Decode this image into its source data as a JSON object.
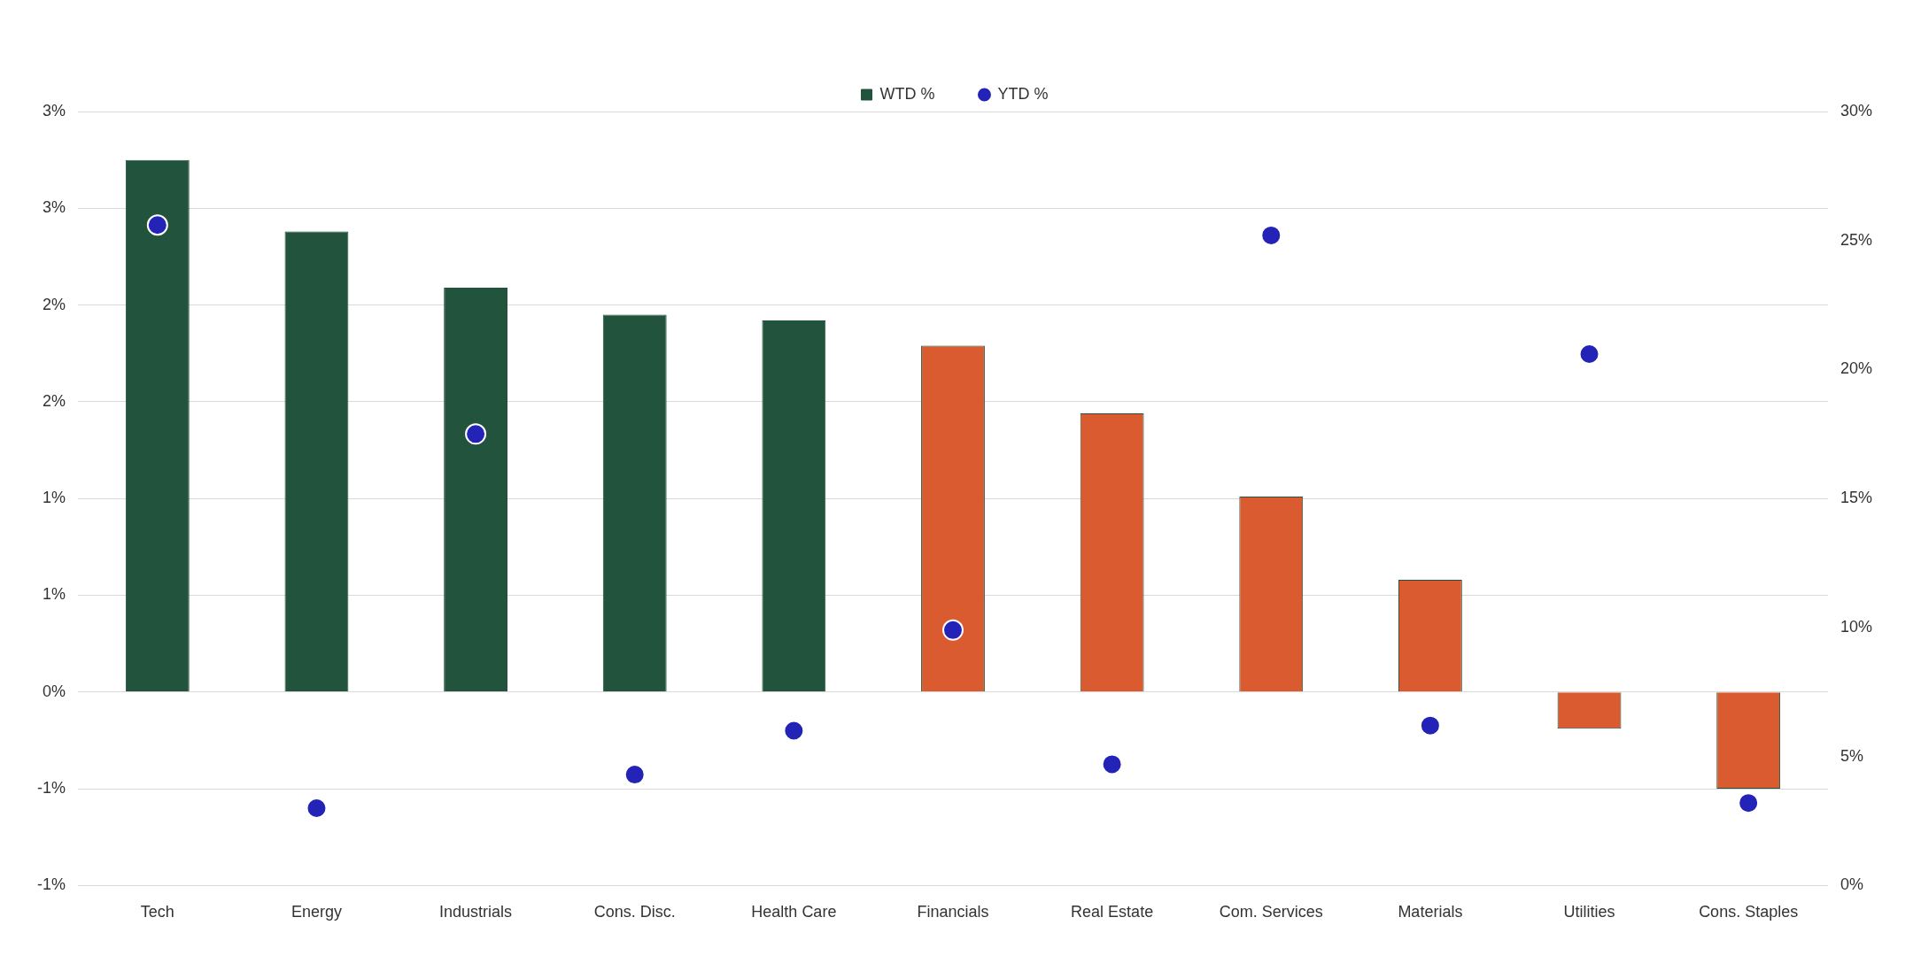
{
  "chart_data": {
    "type": "bar",
    "categories": [
      "Tech",
      "Energy",
      "Industrials",
      "Cons. Disc.",
      "Health Care",
      "Financials",
      "Real Estate",
      "Com. Services",
      "Materials",
      "Utilities",
      "Cons. Staples"
    ],
    "series": [
      {
        "name": "WTD %",
        "color": "#22533d",
        "colors": [
          "#22533d",
          "#22533d",
          "#22533d",
          "#22533d",
          "#22533d",
          "#d95b2f",
          "#d95b2f",
          "#d95b2f",
          "#d95b2f",
          "#d95b2f",
          "#d95b2f"
        ],
        "values": [
          2.75,
          2.38,
          2.09,
          1.95,
          1.92,
          1.79,
          1.44,
          1.01,
          0.58,
          -0.19,
          -0.5
        ]
      },
      {
        "name": "YTD %",
        "type": "scatter",
        "axis": "y2",
        "color": "#2323b8",
        "values": [
          25.6,
          3.0,
          17.5,
          4.3,
          6.0,
          9.9,
          4.7,
          25.2,
          6.2,
          20.6,
          3.2
        ]
      }
    ],
    "ylim": [
      -1,
      3
    ],
    "yticks": [
      {
        "value": -1,
        "label": "-1%"
      },
      {
        "value": -0.5,
        "label": "-1%"
      },
      {
        "value": 0,
        "label": "0%"
      },
      {
        "value": 0.5,
        "label": "1%"
      },
      {
        "value": 1,
        "label": "1%"
      },
      {
        "value": 1.5,
        "label": "2%"
      },
      {
        "value": 2,
        "label": "2%"
      },
      {
        "value": 2.5,
        "label": "3%"
      },
      {
        "value": 3,
        "label": "3%"
      }
    ],
    "y2lim": [
      0,
      30
    ],
    "y2ticks": [
      {
        "value": 0,
        "label": "0%"
      },
      {
        "value": 5,
        "label": "5%"
      },
      {
        "value": 10,
        "label": "10%"
      },
      {
        "value": 15,
        "label": "15%"
      },
      {
        "value": 20,
        "label": "20%"
      },
      {
        "value": 25,
        "label": "25%"
      },
      {
        "value": 30,
        "label": "30%"
      }
    ],
    "grid": "y",
    "legend": "top",
    "marker": "circle"
  }
}
